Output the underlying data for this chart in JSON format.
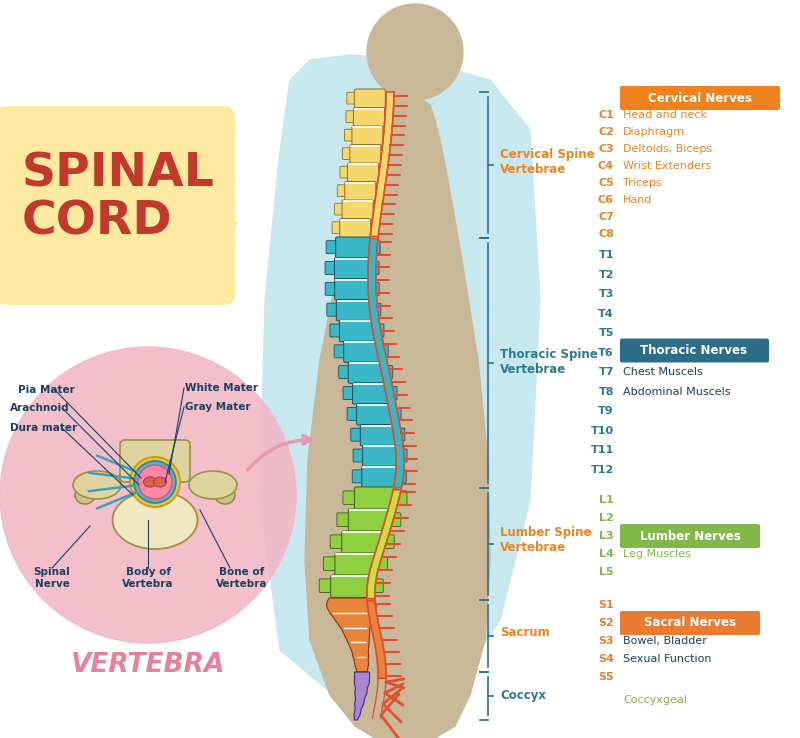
{
  "background_color": "#ffffff",
  "light_blue_bg": "#c8e8f0",
  "body_silhouette_color": "#c8b898",
  "yellow_box_color": "#fde9a0",
  "title": "SPINAL\nCORD",
  "title_color": "#c0392b",
  "pink_circle_color": "#f2b8c6",
  "vertebra_label": "VERTEBRA",
  "vertebra_label_color": "#e8809a",
  "label_color_orange": "#f0821e",
  "label_color_teal": "#2c7a8c",
  "label_color_green": "#82b84a",
  "label_color_dark": "#1a4060",
  "cervical_label": "Cervical Spine\nVertebrae",
  "thoracic_label": "Thoracic Spine\nVertebrae",
  "lumbar_label": "Lumber Spine\nVertebrae",
  "sacrum_label": "Sacrum",
  "coccyx_label": "Coccyx",
  "cervical_nerves_header": "Cervical Nerves",
  "cervical_nerves_bg": "#f0821e",
  "thoracic_nerves_header": "Thoracic Nerves",
  "thoracic_nerves_bg": "#2c6e8a",
  "lumbar_nerves_header": "Lumber Nerves",
  "lumbar_nerves_bg": "#82b84a",
  "sacral_nerves_header": "Sacral Nerves",
  "sacral_nerves_bg": "#e97c32",
  "coccyxgeal_label": "Coccyxgeal",
  "spine_cervical_color": "#f5d76e",
  "spine_thoracic_color": "#3ab8c8",
  "spine_lumbar_color": "#8fd040",
  "spine_sacrum_color": "#e8843b",
  "spine_coccyx_color": "#a888d0",
  "nerve_outer_color": "#e05030",
  "nerve_cord_cervical": "#f5d76e",
  "nerve_cord_thoracic": "#3ab8c8",
  "nerve_cord_lumbar": "#c8e040",
  "nerve_cord_sacral": "#e8843b",
  "bracket_color": "#2c6e8a",
  "cervical_entries": [
    [
      "C1",
      "Head and neck"
    ],
    [
      "C2",
      "Diaphragm"
    ],
    [
      "C3",
      "Deltoids, Biceps"
    ],
    [
      "C4",
      "Wrist Extenders"
    ],
    [
      "C5",
      "Triceps"
    ],
    [
      "C6",
      "Hand"
    ],
    [
      "C7",
      ""
    ],
    [
      "C8",
      ""
    ]
  ],
  "thoracic_entries": [
    [
      "T1",
      ""
    ],
    [
      "T2",
      ""
    ],
    [
      "T3",
      ""
    ],
    [
      "T4",
      ""
    ],
    [
      "T5",
      ""
    ],
    [
      "T6",
      ""
    ],
    [
      "T7",
      ""
    ],
    [
      "T8",
      ""
    ],
    [
      "T9",
      ""
    ],
    [
      "T10",
      ""
    ],
    [
      "T11",
      ""
    ],
    [
      "T12",
      ""
    ]
  ],
  "thoracic_desc": [
    "Chest Muscels",
    "Abdominal Muscels"
  ],
  "lumbar_entries": [
    [
      "L1",
      ""
    ],
    [
      "L2",
      ""
    ],
    [
      "L3",
      ""
    ],
    [
      "L4",
      ""
    ],
    [
      "L5",
      ""
    ]
  ],
  "lumbar_desc": "Leg Muscles",
  "sacral_entries": [
    [
      "S1",
      ""
    ],
    [
      "S2",
      ""
    ],
    [
      "S3",
      ""
    ],
    [
      "S4",
      ""
    ],
    [
      "S5",
      ""
    ]
  ],
  "sacral_desc": [
    "Bowel, Bladder",
    "Sexual Function"
  ]
}
